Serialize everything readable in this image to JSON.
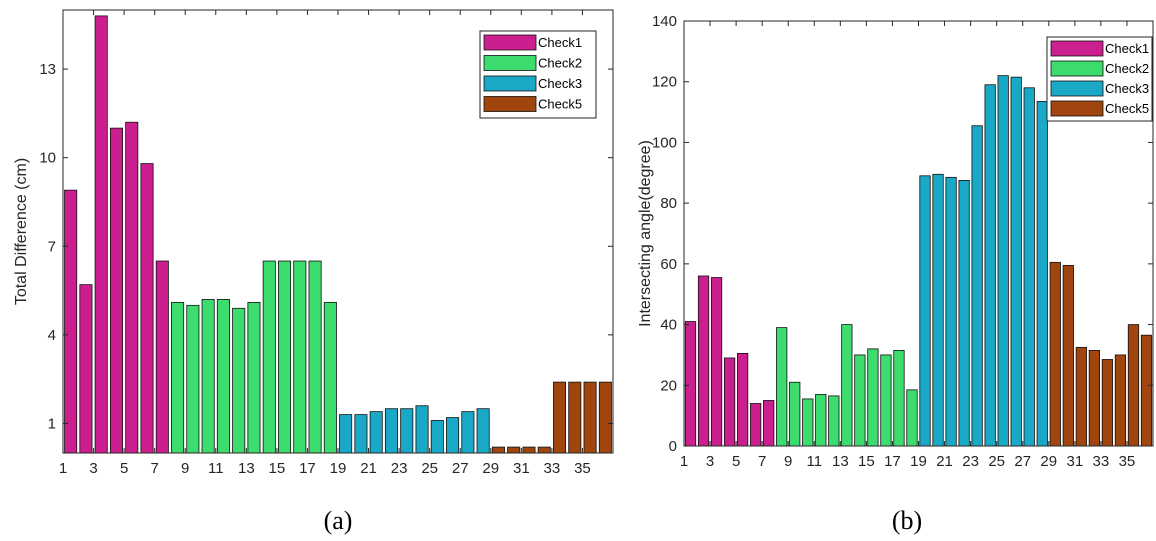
{
  "chart_data": [
    {
      "type": "bar",
      "caption": "(a)",
      "ylabel": "Total Difference (cm)",
      "xlabel": "",
      "xlim": [
        1,
        37
      ],
      "ylim": [
        0,
        15
      ],
      "xticks": [
        1,
        3,
        5,
        7,
        9,
        11,
        13,
        15,
        17,
        19,
        21,
        23,
        25,
        27,
        29,
        31,
        33,
        35
      ],
      "yticks": [
        1,
        4,
        7,
        10,
        13
      ],
      "legend_position": "top-right",
      "series": [
        {
          "name": "Check1",
          "color": "#cc1f8f",
          "x": [
            1,
            2,
            3,
            4,
            5,
            6,
            7
          ],
          "values": [
            8.9,
            5.7,
            14.8,
            11.0,
            11.2,
            9.8,
            6.5
          ]
        },
        {
          "name": "Check2",
          "color": "#3ddc6e",
          "x": [
            8,
            9,
            10,
            11,
            12,
            13,
            14,
            15,
            16,
            17,
            18
          ],
          "values": [
            5.1,
            5.0,
            5.2,
            5.2,
            4.9,
            5.1,
            6.5,
            6.5,
            6.5,
            6.5,
            5.1
          ]
        },
        {
          "name": "Check3",
          "color": "#19a9c6",
          "x": [
            19,
            20,
            21,
            22,
            23,
            24,
            25,
            26,
            27,
            28
          ],
          "values": [
            1.3,
            1.3,
            1.4,
            1.5,
            1.5,
            1.6,
            1.1,
            1.2,
            1.4,
            1.5
          ]
        },
        {
          "name": "Check5",
          "color": "#a0450e",
          "x": [
            29,
            30,
            31,
            32,
            33,
            34,
            35,
            36
          ],
          "values": [
            0.2,
            0.2,
            0.2,
            0.2,
            2.4,
            2.4,
            2.4,
            2.4
          ]
        }
      ]
    },
    {
      "type": "bar",
      "caption": "(b)",
      "ylabel": "Intersecting angle(degree)",
      "xlabel": "",
      "xlim": [
        1,
        37
      ],
      "ylim": [
        0,
        140
      ],
      "xticks": [
        1,
        3,
        5,
        7,
        9,
        11,
        13,
        15,
        17,
        19,
        21,
        23,
        25,
        27,
        29,
        31,
        33,
        35
      ],
      "yticks": [
        0,
        20,
        40,
        60,
        80,
        100,
        120,
        140
      ],
      "legend_position": "top-left-inside",
      "series": [
        {
          "name": "Check1",
          "color": "#cc1f8f",
          "x": [
            1,
            2,
            3,
            4,
            5,
            6,
            7
          ],
          "values": [
            41,
            56,
            55.5,
            29,
            30.5,
            14,
            15
          ]
        },
        {
          "name": "Check2",
          "color": "#3ddc6e",
          "x": [
            8,
            9,
            10,
            11,
            12,
            13,
            14,
            15,
            16,
            17,
            18
          ],
          "values": [
            39,
            21,
            15.5,
            17,
            16.5,
            40,
            30,
            32,
            30,
            31.5,
            18.5
          ]
        },
        {
          "name": "Check3",
          "color": "#19a9c6",
          "x": [
            19,
            20,
            21,
            22,
            23,
            24,
            25,
            26,
            27,
            28
          ],
          "values": [
            89,
            89.5,
            88.5,
            87.5,
            105.5,
            119,
            122,
            121.5,
            118,
            113.5
          ]
        },
        {
          "name": "Check5",
          "color": "#a0450e",
          "x": [
            29,
            30,
            31,
            32,
            33,
            34,
            35,
            36
          ],
          "values": [
            60.5,
            59.5,
            32.5,
            31.5,
            28.5,
            30,
            40,
            36.5
          ]
        }
      ]
    }
  ]
}
